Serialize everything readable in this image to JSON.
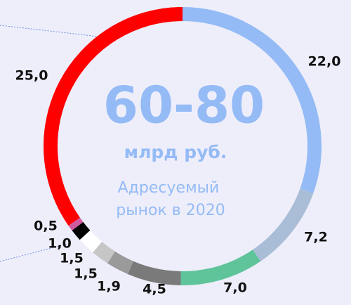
{
  "chart_data": {
    "type": "donut",
    "center_title": "60-80",
    "center_subtitle": "млрд руб.",
    "center_note": [
      "Адресуемый",
      "рынок в 2020"
    ],
    "values": [
      22.0,
      7.2,
      7.0,
      4.5,
      1.9,
      1.5,
      1.5,
      1.0,
      0.5,
      25.0
    ],
    "value_labels": [
      "22,0",
      "7,2",
      "7,0",
      "4,5",
      "1,9",
      "1,5",
      "1,5",
      "1,0",
      "0,5",
      "25,0"
    ],
    "colors": [
      "#94bbf5",
      "#a9bdd6",
      "#5fc49a",
      "#7a7a7a",
      "#9a9a9a",
      "#c6c6c6",
      "#ffffff",
      "#000000",
      "#d05aa0",
      "#ff0000"
    ]
  }
}
